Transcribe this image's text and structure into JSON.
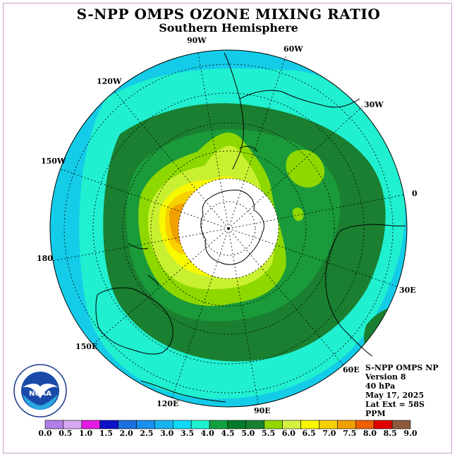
{
  "header": {
    "title": "S-NPP OMPS OZONE MIXING RATIO",
    "subtitle": "Southern Hemisphere"
  },
  "info": {
    "line1": "S-NPP OMPS NP",
    "line2": "Version 8",
    "line3": "40 hPa",
    "line4": "May 17, 2025",
    "line5": "Lat Ext = 58S",
    "line6": "PPM"
  },
  "longitude_labels": [
    "90W",
    "60W",
    "30W",
    "0",
    "30E",
    "60E",
    "90E",
    "120E",
    "150E",
    "180",
    "150W",
    "120W"
  ],
  "logo": {
    "text": "NOAA",
    "ring_text": "NATIONAL OCEANIC AND ATMOSPHERIC ADMINISTRATION U.S. DEPARTMENT OF COMMERCE"
  },
  "colorbar": {
    "labels": [
      "0.0",
      "0.5",
      "1.0",
      "1.5",
      "2.0",
      "2.5",
      "3.0",
      "3.5",
      "4.0",
      "4.5",
      "5.0",
      "5.5",
      "6.0",
      "6.5",
      "7.0",
      "7.5",
      "8.0",
      "8.5",
      "9.0"
    ],
    "colors": [
      "#b07fe6",
      "#d8a8f0",
      "#e21ce2",
      "#1010c8",
      "#1a6fe0",
      "#1a8ff0",
      "#18b4f0",
      "#10d8f8",
      "#20f0d0",
      "#10a040",
      "#007a2a",
      "#1a7f30",
      "#90d800",
      "#d8f040",
      "#f8f800",
      "#f8d000",
      "#f0a000",
      "#f06000",
      "#e00000",
      "#8b5a3c"
    ]
  },
  "colors": {
    "bg_out": "#14cce8",
    "band_cyan": "#20f0d0",
    "band_darkgreen": "#1a7f30",
    "band_green": "#1a9a3a",
    "band_lime": "#8ed800",
    "band_yellowgreen": "#c8f030",
    "band_yellow": "#f8f800",
    "band_orange": "#f8d000",
    "band_deeporange": "#f0a000",
    "band_blue": "#10b8f0",
    "polar_cap": "#ffffff"
  }
}
